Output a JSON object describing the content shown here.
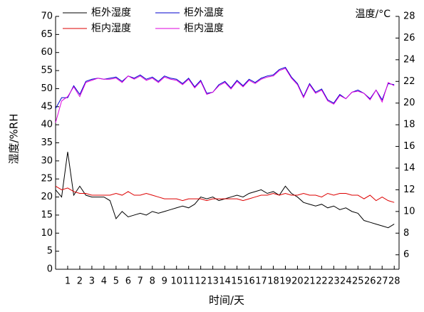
{
  "chart_data": {
    "type": "line",
    "x_label": "时间/天",
    "y_label": "湿度/%RH",
    "y2_label": "温度/°C",
    "xlim": [
      0,
      28.4
    ],
    "xticks": [
      1,
      2,
      3,
      4,
      5,
      6,
      7,
      8,
      9,
      10,
      11,
      12,
      13,
      14,
      15,
      16,
      17,
      18,
      19,
      20,
      21,
      22,
      23,
      24,
      25,
      26,
      27,
      28
    ],
    "ylim": [
      0,
      70
    ],
    "yticks": [
      0,
      5,
      10,
      15,
      20,
      25,
      30,
      35,
      40,
      45,
      50,
      55,
      60,
      65,
      70
    ],
    "y2lim": [
      4.667,
      28
    ],
    "y2ticks": [
      6,
      8,
      10,
      12,
      14,
      16,
      18,
      20,
      22,
      24,
      26,
      28
    ],
    "legend": "top-left",
    "x": [
      0,
      0.5,
      1,
      1.5,
      2,
      2.5,
      3,
      3.5,
      4,
      4.5,
      5,
      5.5,
      6,
      6.5,
      7,
      7.5,
      8,
      8.5,
      9,
      9.5,
      10,
      10.5,
      11,
      11.5,
      12,
      12.5,
      13,
      13.5,
      14,
      14.5,
      15,
      15.5,
      16,
      16.5,
      17,
      17.5,
      18,
      18.5,
      19,
      19.5,
      20,
      20.5,
      21,
      21.5,
      22,
      22.5,
      23,
      23.5,
      24,
      24.5,
      25,
      25.5,
      26,
      26.5,
      27,
      27.5,
      28
    ],
    "series": [
      {
        "name": "柜外湿度",
        "color": "#000000",
        "values": [
          22,
          20,
          32.5,
          20.5,
          23,
          20.5,
          20,
          20,
          20,
          19,
          14,
          16,
          14.5,
          15,
          15.5,
          15,
          16,
          15.5,
          16,
          16.5,
          17,
          17.5,
          17,
          18,
          20,
          19.5,
          20,
          19,
          19.5,
          20,
          20.5,
          20,
          21,
          21.5,
          22,
          21,
          21.5,
          20.5,
          23,
          21,
          20,
          18.5,
          18,
          17.5,
          18,
          17,
          17.5,
          16.5,
          17,
          16,
          15.5,
          13.5,
          13,
          12.5,
          12,
          11.5,
          12.5
        ]
      },
      {
        "name": "柜外温度",
        "color": "#0000cc",
        "axis": "y2",
        "values": [
          19.5,
          20.5,
          20.5,
          21.6,
          20.8,
          22,
          22.2,
          22.3,
          22.2,
          22.3,
          22.4,
          22,
          22.5,
          22.3,
          22.6,
          22.2,
          22.4,
          22,
          22.5,
          22.3,
          22.2,
          21.8,
          22.3,
          21.5,
          22.1,
          20.9,
          21,
          21.7,
          22,
          21.4,
          22.1,
          21.6,
          22.2,
          21.9,
          22.3,
          22.5,
          22.6,
          23.1,
          23.3,
          22.4,
          21.8,
          20.6,
          21.8,
          21,
          21.3,
          20.3,
          20,
          20.8,
          20.4,
          21,
          21.2,
          20.9,
          20.4,
          21.2,
          20.3,
          21.8,
          21.7
        ]
      },
      {
        "name": "柜内湿度",
        "color": "#dd0000",
        "values": [
          23,
          22,
          22.5,
          21.5,
          21,
          21,
          20.5,
          20.5,
          20.5,
          20.5,
          21,
          20.5,
          21.5,
          20.5,
          20.5,
          21,
          20.5,
          20,
          19.5,
          19.5,
          19.5,
          19,
          19.5,
          19.5,
          19.5,
          19,
          19.5,
          19.5,
          19.5,
          19.5,
          19.5,
          19,
          19.5,
          20,
          20.5,
          20.5,
          21,
          20.5,
          21,
          20.5,
          20.5,
          21,
          20.5,
          20.5,
          20,
          21,
          20.5,
          21,
          21,
          20.5,
          20.5,
          19.5,
          20.5,
          19,
          20,
          19,
          18.5
        ]
      },
      {
        "name": "柜内温度",
        "color": "#dd00dd",
        "axis": "y2",
        "values": [
          18.2,
          20.2,
          20.6,
          21.5,
          20.6,
          21.9,
          22.1,
          22.3,
          22.2,
          22.2,
          22.3,
          21.9,
          22.5,
          22.2,
          22.5,
          22.1,
          22.3,
          21.9,
          22.4,
          22.2,
          22.1,
          21.7,
          22.2,
          21.4,
          22,
          20.8,
          21,
          21.6,
          21.9,
          21.3,
          22,
          21.5,
          22.1,
          21.8,
          22.2,
          22.4,
          22.5,
          23,
          23.2,
          22.3,
          21.7,
          20.5,
          21.7,
          20.9,
          21.2,
          20.2,
          19.9,
          20.7,
          20.4,
          21,
          21.1,
          20.9,
          20.3,
          21.2,
          20.1,
          21.9,
          21.6
        ]
      }
    ]
  }
}
